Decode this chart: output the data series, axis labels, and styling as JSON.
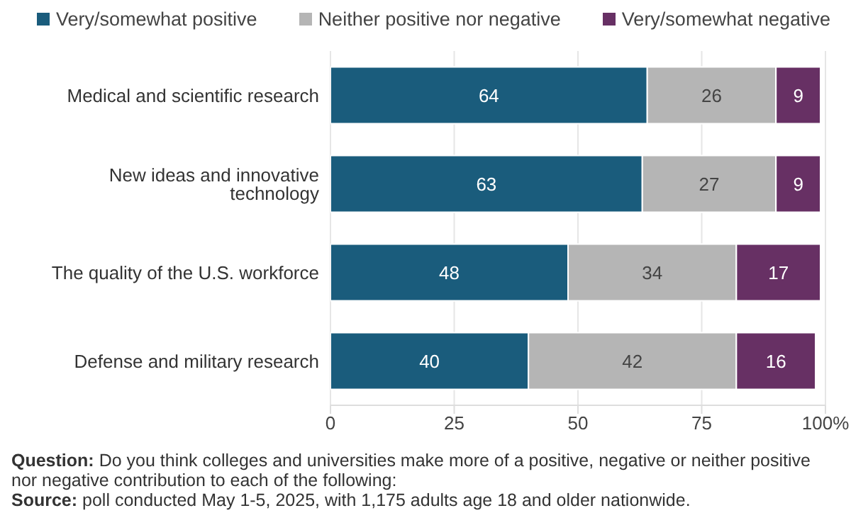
{
  "chart_data": {
    "type": "bar",
    "orientation": "horizontal",
    "stacked": true,
    "categories": [
      "Medical and scientific research",
      "New ideas and innovative technology",
      "The quality of the U.S. workforce",
      "Defense and military research"
    ],
    "series": [
      {
        "name": "Very/somewhat positive",
        "color": "#1a5c7c",
        "values": [
          64,
          63,
          48,
          40
        ]
      },
      {
        "name": "Neither positive nor negative",
        "color": "#b5b5b5",
        "values": [
          26,
          27,
          34,
          42
        ]
      },
      {
        "name": "Very/somewhat negative",
        "color": "#673064",
        "values": [
          9,
          9,
          17,
          16
        ]
      }
    ],
    "xlim": [
      0,
      100
    ],
    "xticks": [
      0,
      25,
      50,
      75,
      {
        "value": 100,
        "label": "100%"
      }
    ],
    "grid": "x",
    "legend": "top",
    "data_labels": true,
    "annotations": [
      "Question: Do you think colleges and universities make more of a  positive, negative or neither positive nor negative contribution to each of the following:",
      "Source: poll conducted May 1-5, 2025, with 1,175 adults age 18 and older nationwide."
    ]
  }
}
